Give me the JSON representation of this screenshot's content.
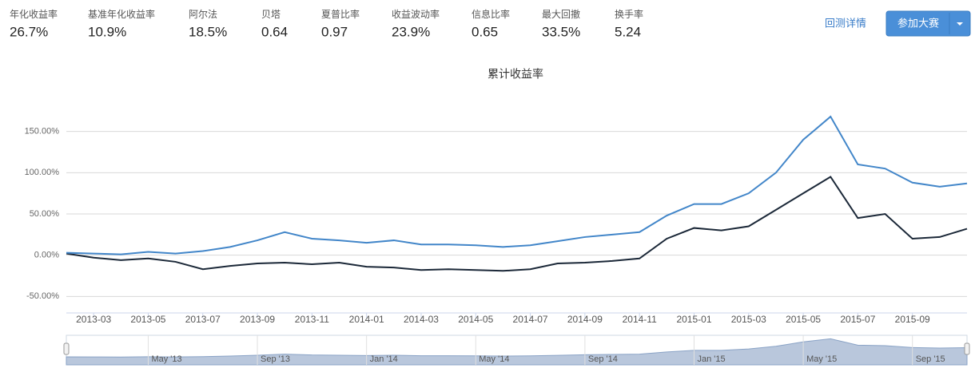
{
  "metrics": [
    {
      "label": "年化收益率",
      "value": "26.7%"
    },
    {
      "label": "基准年化收益率",
      "value": "10.9%"
    },
    {
      "label": "阿尔法",
      "value": "18.5%"
    },
    {
      "label": "贝塔",
      "value": "0.64"
    },
    {
      "label": "夏普比率",
      "value": "0.97"
    },
    {
      "label": "收益波动率",
      "value": "23.9%"
    },
    {
      "label": "信息比率",
      "value": "0.65"
    },
    {
      "label": "最大回撤",
      "value": "33.5%"
    },
    {
      "label": "换手率",
      "value": "5.24"
    }
  ],
  "actions": {
    "link": "回测详情",
    "button": "参加大赛"
  },
  "chart_data": {
    "type": "line",
    "title": "累计收益率",
    "x": [
      "2013-02",
      "2013-03",
      "2013-04",
      "2013-05",
      "2013-06",
      "2013-07",
      "2013-08",
      "2013-09",
      "2013-10",
      "2013-11",
      "2013-12",
      "2014-01",
      "2014-02",
      "2014-03",
      "2014-04",
      "2014-05",
      "2014-06",
      "2014-07",
      "2014-08",
      "2014-09",
      "2014-10",
      "2014-11",
      "2014-12",
      "2015-01",
      "2015-02",
      "2015-03",
      "2015-04",
      "2015-05",
      "2015-06",
      "2015-07",
      "2015-08",
      "2015-09",
      "2015-10",
      "2015-11"
    ],
    "series": [
      {
        "color": "#4286c9",
        "values": [
          3,
          2,
          1,
          4,
          2,
          5,
          10,
          18,
          28,
          20,
          18,
          15,
          18,
          13,
          13,
          12,
          10,
          12,
          17,
          22,
          25,
          28,
          48,
          62,
          62,
          75,
          100,
          140,
          168,
          110,
          105,
          88,
          83,
          87
        ]
      },
      {
        "color": "#1b2838",
        "values": [
          2,
          -3,
          -6,
          -4,
          -8,
          -17,
          -13,
          -10,
          -9,
          -11,
          -9,
          -14,
          -15,
          -18,
          -17,
          -18,
          -19,
          -17,
          -10,
          -9,
          -7,
          -4,
          20,
          33,
          30,
          35,
          55,
          75,
          95,
          45,
          50,
          20,
          22,
          32
        ]
      }
    ],
    "xlim": [
      "2013-02",
      "2015-11"
    ],
    "xticks": [
      "2013-03",
      "2013-05",
      "2013-07",
      "2013-09",
      "2013-11",
      "2014-01",
      "2014-03",
      "2014-05",
      "2014-07",
      "2014-09",
      "2014-11",
      "2015-01",
      "2015-03",
      "2015-05",
      "2015-07",
      "2015-09"
    ],
    "ylim": [
      -70,
      200
    ],
    "yticks": [
      {
        "value": -50,
        "label": "-50.00%"
      },
      {
        "value": 0,
        "label": "0.00%"
      },
      {
        "value": 50,
        "label": "50.00%"
      },
      {
        "value": 100,
        "label": "100.00%"
      },
      {
        "value": 150,
        "label": "150.00%"
      }
    ],
    "grid": true,
    "navigator": {
      "xticks": [
        {
          "value": "2013-05",
          "label": "May '13"
        },
        {
          "value": "2013-09",
          "label": "Sep '13"
        },
        {
          "value": "2014-01",
          "label": "Jan '14"
        },
        {
          "value": "2014-05",
          "label": "May '14"
        },
        {
          "value": "2014-09",
          "label": "Sep '14"
        },
        {
          "value": "2015-01",
          "label": "Jan '15"
        },
        {
          "value": "2015-05",
          "label": "May '15"
        },
        {
          "value": "2015-09",
          "label": "Sep '15"
        }
      ]
    }
  }
}
